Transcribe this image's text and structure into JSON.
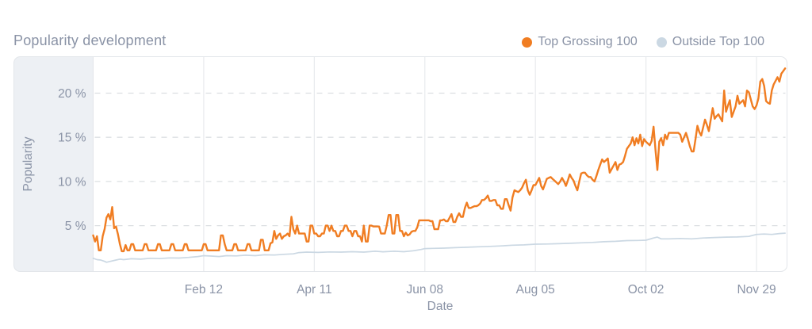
{
  "header": {
    "title": "Popularity development"
  },
  "theme": {
    "text_color": "#8A93A6",
    "panel_background": "#EDF0F4",
    "border_color": "#E3E6EA",
    "h_grid_color": "#DCDFE2",
    "v_grid_color": "#E8EAED",
    "background": "#FFFFFF"
  },
  "chart_data": {
    "type": "line",
    "title": "Popularity development",
    "xlabel": "Date",
    "ylabel": "Popularity",
    "x_unit": "day index from start of visible range (ticks every 58 days)",
    "x_total_days": 364,
    "x_ticks": [
      {
        "day": 58,
        "label": "Feb 12"
      },
      {
        "day": 116,
        "label": "Apr 11"
      },
      {
        "day": 174,
        "label": "Jun 08"
      },
      {
        "day": 232,
        "label": "Aug 05"
      },
      {
        "day": 290,
        "label": "Oct 02"
      },
      {
        "day": 348,
        "label": "Nov 29"
      }
    ],
    "y_ticks": [
      {
        "value": 5,
        "label": "5 %"
      },
      {
        "value": 10,
        "label": "10 %"
      },
      {
        "value": 15,
        "label": "15 %"
      },
      {
        "value": 20,
        "label": "20 %"
      }
    ],
    "ylim": [
      0,
      24.2
    ],
    "y_unit": "%",
    "grid": {
      "horizontal": "dashed",
      "vertical": "solid"
    },
    "legend_position": "top-right",
    "series": [
      {
        "name": "Top Grossing 100",
        "color": "#F07D22",
        "day_start": 0,
        "day_step": 1,
        "values": [
          3.9,
          3.2,
          3.8,
          2.2,
          2.2,
          3.8,
          4.6,
          5.9,
          6.3,
          5.7,
          7.1,
          4.7,
          4.9,
          4.0,
          2.9,
          2.1,
          2.1,
          2.8,
          2.2,
          2.2,
          2.9,
          2.9,
          2.2,
          2.2,
          2.2,
          2.2,
          2.2,
          2.9,
          2.9,
          2.2,
          2.2,
          2.2,
          2.2,
          2.2,
          2.9,
          2.9,
          2.2,
          2.2,
          2.2,
          2.2,
          2.2,
          2.9,
          2.9,
          2.2,
          2.2,
          2.2,
          2.2,
          2.2,
          2.9,
          2.9,
          2.2,
          2.2,
          2.2,
          2.2,
          2.2,
          2.2,
          2.2,
          2.2,
          2.9,
          2.9,
          2.2,
          2.2,
          2.2,
          2.2,
          2.2,
          2.2,
          2.2,
          3.9,
          3.9,
          2.9,
          2.2,
          2.2,
          2.2,
          2.2,
          2.9,
          2.9,
          2.2,
          2.2,
          2.2,
          2.2,
          2.2,
          2.9,
          2.9,
          2.2,
          2.2,
          2.2,
          2.2,
          2.2,
          3.4,
          3.4,
          2.2,
          2.2,
          2.2,
          3.0,
          3.1,
          4.4,
          3.5,
          3.9,
          4.1,
          3.5,
          3.8,
          3.9,
          4.1,
          3.8,
          6.0,
          4.6,
          4.1,
          5.0,
          4.1,
          4.1,
          4.1,
          4.1,
          3.2,
          3.2,
          5.0,
          5.0,
          4.1,
          4.1,
          3.8,
          3.8,
          4.1,
          4.1,
          5.0,
          5.0,
          4.4,
          5.0,
          4.4,
          4.4,
          3.8,
          3.8,
          4.4,
          4.4,
          5.0,
          5.0,
          4.4,
          4.4,
          3.8,
          4.4,
          4.4,
          3.8,
          3.8,
          3.2,
          5.0,
          3.2,
          3.2,
          5.0,
          5.0,
          4.9,
          4.9,
          4.9,
          4.9,
          4.1,
          4.1,
          4.1,
          5.0,
          6.2,
          6.2,
          4.1,
          4.1,
          6.2,
          6.2,
          4.4,
          4.4,
          3.8,
          4.2,
          3.9,
          4.0,
          4.3,
          4.4,
          4.4,
          4.8,
          5.6,
          5.6,
          5.6,
          5.6,
          5.6,
          5.6,
          5.5,
          5.5,
          4.6,
          4.6,
          4.6,
          5.6,
          5.6,
          5.7,
          5.5,
          5.5,
          5.9,
          6.3,
          5.4,
          5.4,
          6.0,
          6.4,
          6.0,
          6.0,
          7.0,
          7.6,
          7.0,
          7.0,
          7.1,
          7.2,
          7.2,
          7.3,
          7.5,
          7.9,
          7.9,
          8.1,
          8.4,
          7.8,
          7.8,
          7.9,
          7.9,
          7.3,
          7.3,
          6.9,
          6.9,
          8.0,
          8.0,
          7.3,
          6.7,
          8.2,
          9.0,
          8.9,
          8.8,
          9.0,
          9.3,
          9.8,
          10.2,
          9.0,
          8.5,
          9.0,
          9.6,
          9.6,
          10.0,
          10.4,
          9.5,
          9.1,
          9.7,
          10.3,
          10.4,
          10.5,
          10.3,
          10.1,
          9.9,
          9.7,
          10.0,
          10.4,
          10.0,
          9.5,
          10.1,
          10.8,
          10.4,
          10.1,
          9.5,
          9.0,
          10.0,
          10.9,
          11.0,
          11.0,
          10.7,
          10.5,
          10.5,
          10.2,
          10.0,
          10.6,
          11.3,
          11.9,
          12.5,
          12.2,
          12.4,
          12.6,
          11.0,
          11.4,
          11.8,
          12.2,
          11.3,
          11.9,
          12.0,
          12.2,
          12.9,
          13.7,
          14.0,
          14.3,
          15.0,
          14.1,
          14.9,
          14.3,
          15.3,
          14.0,
          14.8,
          14.5,
          14.3,
          14.1,
          14.6,
          16.2,
          13.6,
          11.3,
          14.5,
          14.9,
          14.1,
          15.3,
          14.8,
          15.5,
          15.5,
          15.5,
          15.5,
          15.5,
          15.5,
          15.3,
          14.5,
          15.0,
          15.5,
          14.8,
          14.0,
          13.4,
          13.4,
          14.8,
          16.3,
          15.6,
          15.2,
          16.1,
          17.0,
          16.4,
          15.7,
          17.0,
          18.3,
          17.1,
          17.4,
          17.6,
          17.2,
          16.8,
          20.3,
          17.9,
          18.6,
          19.2,
          17.3,
          17.9,
          18.5,
          19.7,
          18.8,
          19.0,
          19.2,
          18.5,
          20.3,
          20.1,
          19.3,
          18.5,
          18.2,
          18.6,
          19.4,
          21.3,
          21.6,
          20.8,
          19.1,
          18.9,
          18.8,
          20.3,
          21.0,
          21.4,
          21.8,
          21.3,
          22.2,
          22.5,
          22.8
        ]
      },
      {
        "name": "Outside Top 100",
        "color": "#CBD8E3",
        "points": [
          [
            0,
            1.3
          ],
          [
            2,
            1.15
          ],
          [
            4,
            1.1
          ],
          [
            6,
            0.95
          ],
          [
            7,
            0.85
          ],
          [
            9,
            0.95
          ],
          [
            12,
            1.1
          ],
          [
            14,
            1.2
          ],
          [
            16,
            1.15
          ],
          [
            20,
            1.25
          ],
          [
            25,
            1.2
          ],
          [
            30,
            1.3
          ],
          [
            35,
            1.27
          ],
          [
            40,
            1.35
          ],
          [
            45,
            1.33
          ],
          [
            50,
            1.4
          ],
          [
            55,
            1.5
          ],
          [
            58,
            1.6
          ],
          [
            62,
            1.55
          ],
          [
            66,
            1.5
          ],
          [
            70,
            1.6
          ],
          [
            75,
            1.57
          ],
          [
            80,
            1.65
          ],
          [
            85,
            1.6
          ],
          [
            90,
            1.7
          ],
          [
            95,
            1.67
          ],
          [
            100,
            1.75
          ],
          [
            105,
            1.8
          ],
          [
            108,
            1.95
          ],
          [
            112,
            2.0
          ],
          [
            118,
            1.97
          ],
          [
            124,
            2.02
          ],
          [
            130,
            2.0
          ],
          [
            136,
            2.05
          ],
          [
            142,
            2.0
          ],
          [
            148,
            2.1
          ],
          [
            152,
            2.04
          ],
          [
            158,
            2.1
          ],
          [
            163,
            2.05
          ],
          [
            168,
            2.15
          ],
          [
            172,
            2.3
          ],
          [
            174,
            2.4
          ],
          [
            178,
            2.42
          ],
          [
            184,
            2.45
          ],
          [
            190,
            2.5
          ],
          [
            196,
            2.55
          ],
          [
            202,
            2.6
          ],
          [
            208,
            2.65
          ],
          [
            214,
            2.7
          ],
          [
            220,
            2.78
          ],
          [
            226,
            2.82
          ],
          [
            232,
            2.9
          ],
          [
            238,
            2.92
          ],
          [
            244,
            2.95
          ],
          [
            250,
            3.0
          ],
          [
            256,
            3.05
          ],
          [
            262,
            3.1
          ],
          [
            268,
            3.18
          ],
          [
            274,
            3.22
          ],
          [
            280,
            3.3
          ],
          [
            286,
            3.32
          ],
          [
            290,
            3.35
          ],
          [
            294,
            3.6
          ],
          [
            296,
            3.7
          ],
          [
            298,
            3.5
          ],
          [
            302,
            3.5
          ],
          [
            308,
            3.55
          ],
          [
            314,
            3.5
          ],
          [
            320,
            3.6
          ],
          [
            326,
            3.65
          ],
          [
            332,
            3.7
          ],
          [
            338,
            3.72
          ],
          [
            344,
            3.78
          ],
          [
            348,
            4.0
          ],
          [
            352,
            4.05
          ],
          [
            356,
            4.0
          ],
          [
            360,
            4.1
          ],
          [
            363,
            4.15
          ]
        ]
      }
    ]
  }
}
